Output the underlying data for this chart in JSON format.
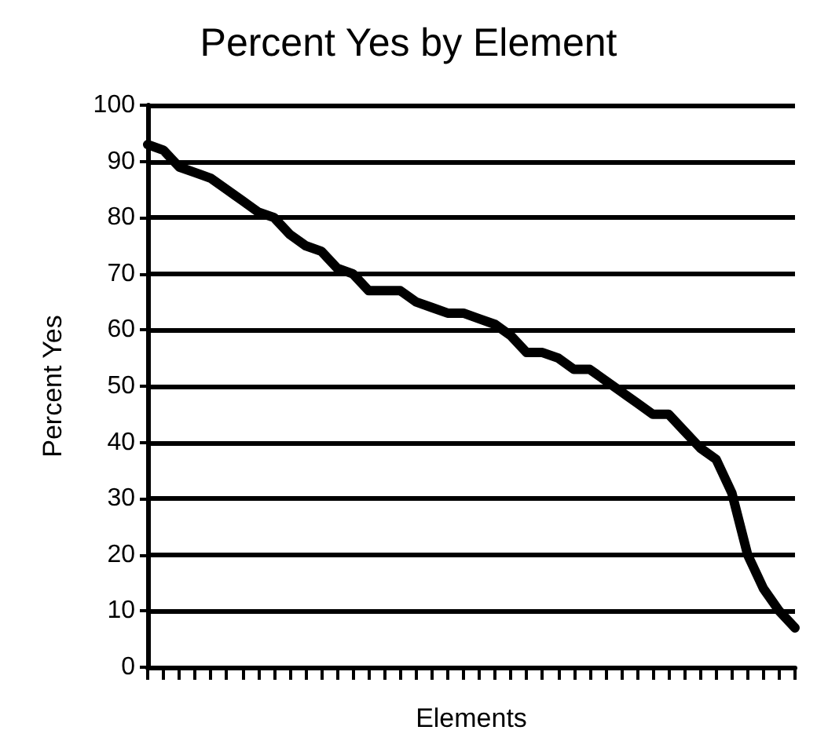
{
  "chart_data": {
    "type": "line",
    "title": "Percent Yes by Element",
    "xlabel": "Elements",
    "ylabel": "Percent Yes",
    "categories": [
      null,
      null,
      null,
      null,
      null,
      null,
      null,
      null,
      null,
      null,
      null,
      null,
      null,
      null,
      null,
      null,
      null,
      null,
      null,
      null,
      null,
      null,
      null,
      null,
      null,
      null,
      null,
      null,
      null,
      null,
      null,
      null,
      null,
      null,
      null,
      null,
      null,
      null,
      null,
      null,
      null,
      null
    ],
    "series": [
      {
        "color": "#000000",
        "values": [
          93,
          92,
          89,
          88,
          87,
          85,
          83,
          81,
          80,
          77,
          75,
          74,
          71,
          70,
          67,
          67,
          67,
          65,
          64,
          63,
          63,
          62,
          61,
          59,
          56,
          56,
          55,
          53,
          53,
          51,
          49,
          47,
          45,
          45,
          42,
          39,
          37,
          31,
          20,
          14,
          10,
          7
        ]
      }
    ],
    "ylim": [
      0,
      100
    ],
    "yticks": [
      0,
      10,
      20,
      30,
      40,
      50,
      60,
      70,
      80,
      90,
      100
    ],
    "grid": "y",
    "marker": "none",
    "line_style": "solid",
    "tick_labels": "y"
  }
}
